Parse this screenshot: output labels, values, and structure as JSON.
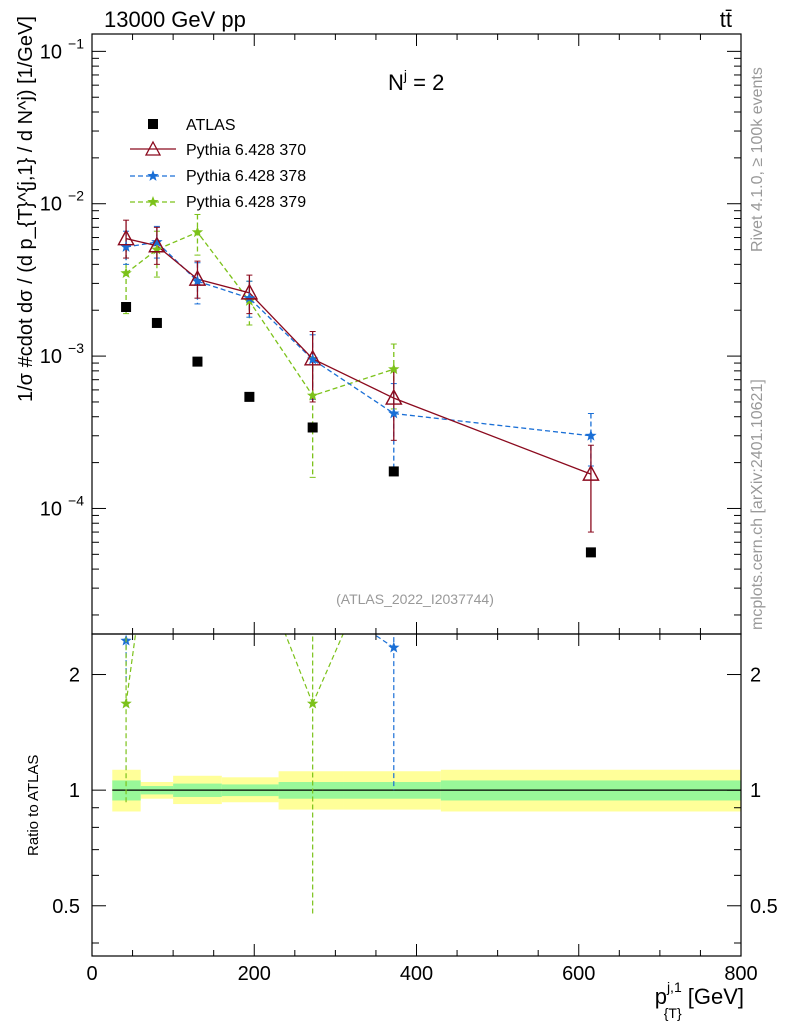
{
  "header": {
    "left": "13000 GeV pp",
    "right": "tt̄"
  },
  "side_labels": {
    "rivet": "Rivet 4.1.0, ≥ 100k events",
    "mcplots": "mcplots.cern.ch [arXiv:2401.10621]"
  },
  "colors": {
    "data": "#000000",
    "p370": "#8b0a1e",
    "p378": "#1a6fd6",
    "p379": "#7cc21a",
    "band_inner": "#99f899",
    "band_outer": "#ffff99"
  },
  "chart_data": [
    {
      "type": "line",
      "title": "N^j = 2",
      "title_main": "N",
      "title_sup": "j",
      "title_tail": " = 2",
      "analysis": "(ATLAS_2022_I2037744)",
      "ylabel": "1/σ #cdot dσ / (d p_{T}^{j,1} / d N^j) [1/GeV]",
      "yscale": "log",
      "ylim": [
        1.5e-05,
        0.13
      ],
      "xlim": [
        0,
        800
      ],
      "yticks": [
        {
          "base": "10",
          "exp": "−1",
          "value": 0.1
        },
        {
          "base": "10",
          "exp": "−2",
          "value": 0.01
        },
        {
          "base": "10",
          "exp": "−3",
          "value": 0.001
        },
        {
          "base": "10",
          "exp": "−4",
          "value": 0.0001
        }
      ],
      "legend": [
        {
          "key": "data",
          "label": "ATLAS"
        },
        {
          "key": "p370",
          "label": "Pythia 6.428 370"
        },
        {
          "key": "p378",
          "label": "Pythia 6.428 378"
        },
        {
          "key": "p379",
          "label": "Pythia 6.428 379"
        }
      ],
      "data": {
        "name": "ATLAS",
        "x": [
          42,
          80,
          130,
          194,
          272,
          372,
          615
        ],
        "xlo": [
          25,
          60,
          100,
          160,
          230,
          310,
          430
        ],
        "xhi": [
          60,
          100,
          160,
          230,
          310,
          430,
          800
        ],
        "y": [
          0.0021,
          0.00165,
          0.00092,
          0.00054,
          0.00034,
          0.000175,
          5.15e-05
        ]
      },
      "series": [
        {
          "key": "p370",
          "name": "Pythia 6.428 370",
          "marker": "triangle-open",
          "style": "solid",
          "x": [
            42,
            80,
            130,
            194,
            272,
            372,
            615
          ],
          "y": [
            0.0059,
            0.0053,
            0.0032,
            0.0026,
            0.00096,
            0.00053,
            0.000168
          ],
          "ylo": [
            0.0044,
            0.004,
            0.0024,
            0.0019,
            0.0005,
            0.00028,
            7e-05
          ],
          "yhi": [
            0.0078,
            0.007,
            0.0042,
            0.0034,
            0.00145,
            0.0008,
            0.00026
          ]
        },
        {
          "key": "p378",
          "name": "Pythia 6.428 378",
          "marker": "star",
          "style": "dashed",
          "x": [
            42,
            80,
            130,
            194,
            272,
            372,
            615
          ],
          "y": [
            0.0052,
            0.0056,
            0.0031,
            0.0024,
            0.00095,
            0.00042,
            0.0003
          ],
          "ylo": [
            0.004,
            0.0044,
            0.0022,
            0.0018,
            0.00052,
            0.00018,
            0.00019
          ],
          "yhi": [
            0.0066,
            0.0071,
            0.0041,
            0.0031,
            0.00138,
            0.00066,
            0.00042
          ]
        },
        {
          "key": "p379",
          "name": "Pythia 6.428 379",
          "marker": "star",
          "style": "dashed",
          "x": [
            42,
            80,
            130,
            194,
            272,
            372
          ],
          "y": [
            0.0035,
            0.005,
            0.0065,
            0.0023,
            0.00055,
            0.00082
          ],
          "ylo": [
            0.0019,
            0.0033,
            0.0046,
            0.0016,
            0.00016,
            0.00045
          ],
          "yhi": [
            0.0052,
            0.0066,
            0.0085,
            0.0031,
            0.00098,
            0.0012
          ]
        }
      ]
    },
    {
      "type": "line",
      "ylabel": "Ratio to ATLAS",
      "xlabel": "p_{T}^{j,1} [GeV]",
      "xlabel_main": "p",
      "xlabel_sup": "j,1",
      "xlabel_sub": "{T}",
      "xlabel_tail": " [GeV]",
      "yscale": "log",
      "ylim": [
        0.37,
        2.55
      ],
      "xlim": [
        0,
        800
      ],
      "xticks": [
        {
          "label": "0",
          "value": 0
        },
        {
          "label": "200",
          "value": 200
        },
        {
          "label": "400",
          "value": 400
        },
        {
          "label": "600",
          "value": 600
        },
        {
          "label": "800",
          "value": 800
        }
      ],
      "yticks": [
        {
          "label": "2",
          "value": 2
        },
        {
          "label": "1",
          "value": 1
        },
        {
          "label": "0.5",
          "value": 0.5
        }
      ],
      "bands": [
        {
          "xlo": 25,
          "xhi": 60,
          "inner": [
            0.94,
            1.06
          ],
          "outer": [
            0.88,
            1.13
          ]
        },
        {
          "xlo": 60,
          "xhi": 100,
          "inner": [
            0.975,
            1.025
          ],
          "outer": [
            0.95,
            1.05
          ]
        },
        {
          "xlo": 100,
          "xhi": 160,
          "inner": [
            0.96,
            1.04
          ],
          "outer": [
            0.92,
            1.09
          ]
        },
        {
          "xlo": 160,
          "xhi": 230,
          "inner": [
            0.965,
            1.035
          ],
          "outer": [
            0.93,
            1.08
          ]
        },
        {
          "xlo": 230,
          "xhi": 310,
          "inner": [
            0.95,
            1.05
          ],
          "outer": [
            0.89,
            1.12
          ]
        },
        {
          "xlo": 310,
          "xhi": 430,
          "inner": [
            0.95,
            1.05
          ],
          "outer": [
            0.89,
            1.12
          ]
        },
        {
          "xlo": 430,
          "xhi": 800,
          "inner": [
            0.94,
            1.06
          ],
          "outer": [
            0.88,
            1.13
          ]
        }
      ],
      "ratio_points": [
        {
          "key": "p378",
          "x": 42,
          "y": 2.45,
          "ylo": 1.9,
          "yhi": 3.2
        },
        {
          "key": "p378",
          "x": 372,
          "y": 2.35,
          "ylo": 1.0,
          "yhi": 3.5
        },
        {
          "key": "p379",
          "x": 42,
          "y": 1.68,
          "ylo": 0.92,
          "yhi": 2.5
        },
        {
          "key": "p379",
          "x": 272,
          "y": 1.68,
          "ylo": 0.47,
          "yhi": 2.9
        }
      ],
      "ratio_lines": [
        {
          "key": "p379",
          "x": [
            42,
            60
          ],
          "y": [
            1.68,
            3.2
          ]
        },
        {
          "key": "p379",
          "x": [
            272,
            220
          ],
          "y": [
            1.68,
            3.2
          ]
        },
        {
          "key": "p379",
          "x": [
            272,
            330
          ],
          "y": [
            1.68,
            3.2
          ]
        },
        {
          "key": "p378",
          "x": [
            372,
            330
          ],
          "y": [
            2.35,
            2.7
          ]
        }
      ]
    }
  ]
}
